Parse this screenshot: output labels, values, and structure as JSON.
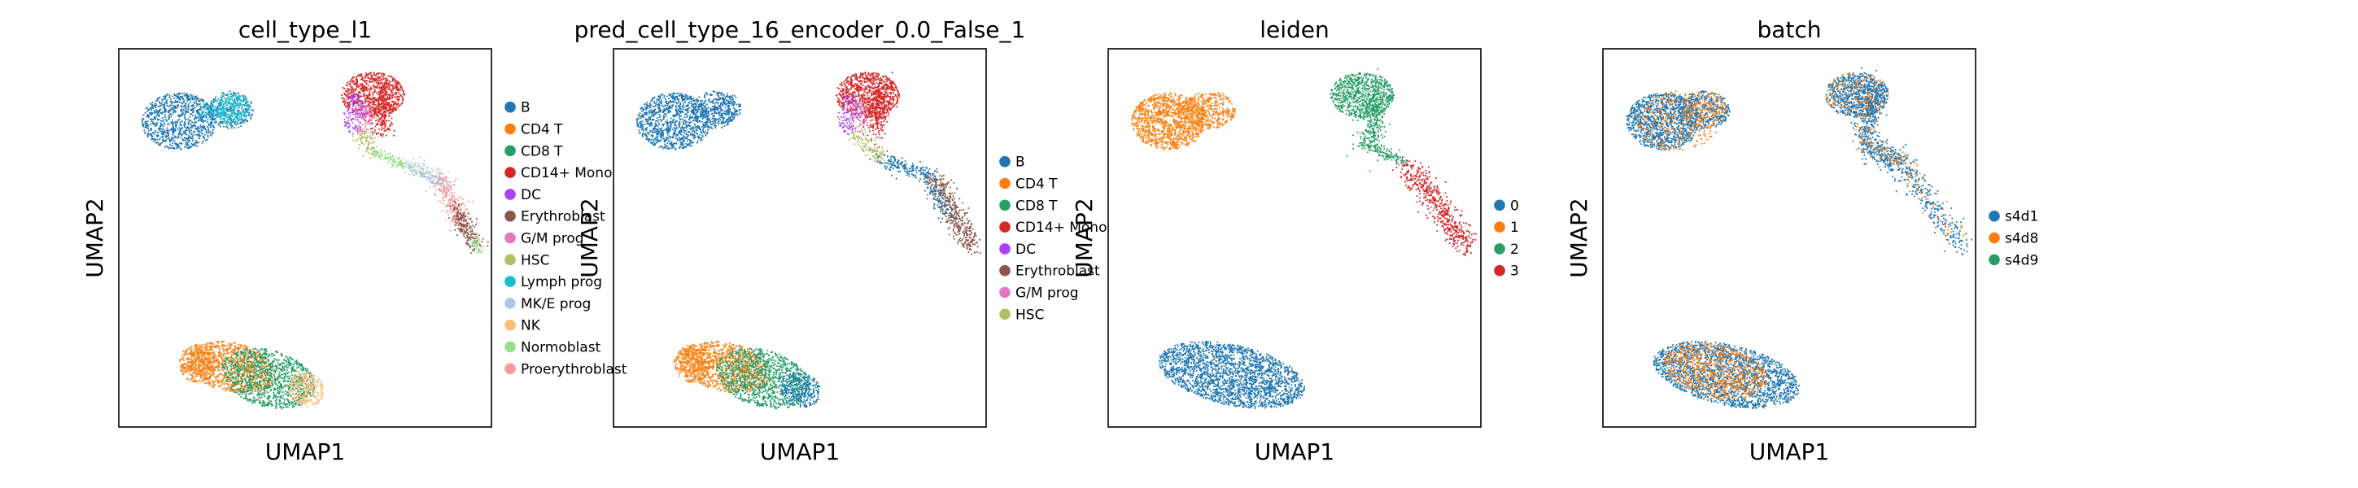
{
  "chart_data": [
    {
      "type": "scatter",
      "title": "cell_type_l1",
      "xlabel": "UMAP1",
      "ylabel": "UMAP2",
      "grid": false,
      "legend_placement": "right",
      "legend": [
        {
          "name": "B",
          "color": "#1f77b4"
        },
        {
          "name": "CD4 T",
          "color": "#ff7f0e"
        },
        {
          "name": "CD8 T",
          "color": "#279e68"
        },
        {
          "name": "CD14+ Mono",
          "color": "#d62728"
        },
        {
          "name": "DC",
          "color": "#aa40fc"
        },
        {
          "name": "Erythroblast",
          "color": "#8c564b"
        },
        {
          "name": "G/M prog",
          "color": "#e377c2"
        },
        {
          "name": "HSC",
          "color": "#b5bd61"
        },
        {
          "name": "Lymph prog",
          "color": "#17becf"
        },
        {
          "name": "MK/E prog",
          "color": "#aec7e8"
        },
        {
          "name": "NK",
          "color": "#ffbb78"
        },
        {
          "name": "Normoblast",
          "color": "#98df8a"
        },
        {
          "name": "Proerythroblast",
          "color": "#ff9896"
        }
      ]
    },
    {
      "type": "scatter",
      "title": "pred_cell_type_16_encoder_0.0_False_1",
      "xlabel": "UMAP1",
      "ylabel": "UMAP2",
      "grid": false,
      "legend_placement": "right",
      "legend": [
        {
          "name": "B",
          "color": "#1f77b4"
        },
        {
          "name": "CD4 T",
          "color": "#ff7f0e"
        },
        {
          "name": "CD8 T",
          "color": "#279e68"
        },
        {
          "name": "CD14+ Mono",
          "color": "#d62728"
        },
        {
          "name": "DC",
          "color": "#aa40fc"
        },
        {
          "name": "Erythroblast",
          "color": "#8c564b"
        },
        {
          "name": "G/M prog",
          "color": "#e377c2"
        },
        {
          "name": "HSC",
          "color": "#b5bd61"
        }
      ]
    },
    {
      "type": "scatter",
      "title": "leiden",
      "xlabel": "UMAP1",
      "ylabel": "UMAP2",
      "grid": false,
      "legend_placement": "right",
      "legend": [
        {
          "name": "0",
          "color": "#1f77b4"
        },
        {
          "name": "1",
          "color": "#ff7f0e"
        },
        {
          "name": "2",
          "color": "#279e68"
        },
        {
          "name": "3",
          "color": "#d62728"
        }
      ]
    },
    {
      "type": "scatter",
      "title": "batch",
      "xlabel": "UMAP1",
      "ylabel": "UMAP2",
      "grid": false,
      "legend_placement": "right",
      "legend": [
        {
          "name": "s4d1",
          "color": "#1f77b4"
        },
        {
          "name": "s4d8",
          "color": "#ff7f0e"
        },
        {
          "name": "s4d9",
          "color": "#279e68"
        }
      ]
    }
  ]
}
